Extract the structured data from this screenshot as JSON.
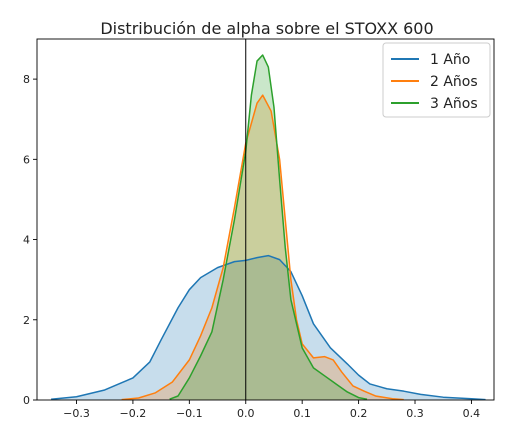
{
  "chart_data": {
    "type": "area",
    "title": "Distribución de alpha sobre el STOXX 600",
    "xlabel": "",
    "ylabel": "",
    "xlim": [
      -0.37,
      0.44
    ],
    "ylim": [
      0,
      9
    ],
    "x_ticks": [
      -0.3,
      -0.2,
      -0.1,
      0.0,
      0.1,
      0.2,
      0.3,
      0.4
    ],
    "x_tick_labels": [
      "−0.3",
      "−0.2",
      "−0.1",
      "0.0",
      "0.1",
      "0.2",
      "0.3",
      "0.4"
    ],
    "y_ticks": [
      0,
      2,
      4,
      6,
      8
    ],
    "y_tick_labels": [
      "0",
      "2",
      "4",
      "6",
      "8"
    ],
    "grid": false,
    "vertical_line_x": 0.0,
    "legend_position": "top-right",
    "series": [
      {
        "name": "1 Año",
        "color": "#1f77b4",
        "points": [
          [
            -0.345,
            0.02
          ],
          [
            -0.3,
            0.08
          ],
          [
            -0.25,
            0.25
          ],
          [
            -0.2,
            0.55
          ],
          [
            -0.17,
            0.95
          ],
          [
            -0.15,
            1.5
          ],
          [
            -0.12,
            2.3
          ],
          [
            -0.1,
            2.75
          ],
          [
            -0.08,
            3.05
          ],
          [
            -0.05,
            3.3
          ],
          [
            -0.02,
            3.45
          ],
          [
            0.0,
            3.48
          ],
          [
            0.02,
            3.55
          ],
          [
            0.04,
            3.6
          ],
          [
            0.06,
            3.5
          ],
          [
            0.08,
            3.2
          ],
          [
            0.1,
            2.6
          ],
          [
            0.12,
            1.9
          ],
          [
            0.15,
            1.3
          ],
          [
            0.18,
            0.9
          ],
          [
            0.2,
            0.62
          ],
          [
            0.22,
            0.4
          ],
          [
            0.25,
            0.28
          ],
          [
            0.28,
            0.22
          ],
          [
            0.31,
            0.14
          ],
          [
            0.35,
            0.07
          ],
          [
            0.4,
            0.03
          ],
          [
            0.425,
            0.01
          ]
        ]
      },
      {
        "name": "2 Años",
        "color": "#ff7f0e",
        "points": [
          [
            -0.22,
            0.01
          ],
          [
            -0.19,
            0.05
          ],
          [
            -0.16,
            0.18
          ],
          [
            -0.13,
            0.45
          ],
          [
            -0.1,
            1.0
          ],
          [
            -0.08,
            1.6
          ],
          [
            -0.06,
            2.3
          ],
          [
            -0.04,
            3.3
          ],
          [
            -0.02,
            4.8
          ],
          [
            0.0,
            6.4
          ],
          [
            0.02,
            7.4
          ],
          [
            0.03,
            7.6
          ],
          [
            0.045,
            7.2
          ],
          [
            0.06,
            6.0
          ],
          [
            0.07,
            4.5
          ],
          [
            0.08,
            3.0
          ],
          [
            0.09,
            2.0
          ],
          [
            0.1,
            1.4
          ],
          [
            0.12,
            1.05
          ],
          [
            0.14,
            1.08
          ],
          [
            0.155,
            1.0
          ],
          [
            0.17,
            0.7
          ],
          [
            0.19,
            0.35
          ],
          [
            0.21,
            0.22
          ],
          [
            0.23,
            0.1
          ],
          [
            0.26,
            0.03
          ],
          [
            0.28,
            0.01
          ]
        ]
      },
      {
        "name": "3 Años",
        "color": "#2ca02c",
        "points": [
          [
            -0.135,
            0.02
          ],
          [
            -0.12,
            0.1
          ],
          [
            -0.1,
            0.55
          ],
          [
            -0.08,
            1.1
          ],
          [
            -0.06,
            1.7
          ],
          [
            -0.04,
            3.0
          ],
          [
            -0.02,
            4.5
          ],
          [
            0.0,
            6.2
          ],
          [
            0.01,
            7.6
          ],
          [
            0.02,
            8.45
          ],
          [
            0.03,
            8.6
          ],
          [
            0.04,
            8.3
          ],
          [
            0.05,
            7.3
          ],
          [
            0.06,
            5.5
          ],
          [
            0.07,
            3.8
          ],
          [
            0.08,
            2.5
          ],
          [
            0.1,
            1.3
          ],
          [
            0.12,
            0.8
          ],
          [
            0.14,
            0.6
          ],
          [
            0.16,
            0.4
          ],
          [
            0.18,
            0.2
          ],
          [
            0.2,
            0.06
          ],
          [
            0.215,
            0.02
          ]
        ]
      }
    ]
  }
}
